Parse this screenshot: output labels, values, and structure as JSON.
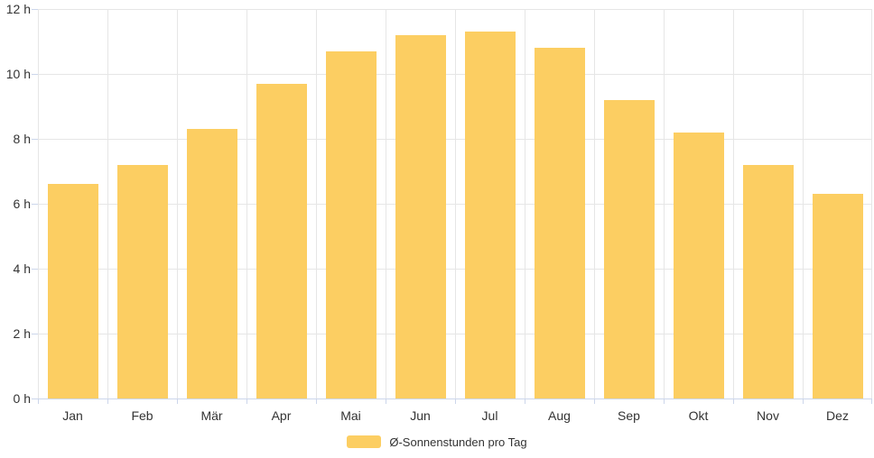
{
  "chart_data": {
    "type": "bar",
    "categories": [
      "Jan",
      "Feb",
      "Mär",
      "Apr",
      "Mai",
      "Jun",
      "Jul",
      "Aug",
      "Sep",
      "Okt",
      "Nov",
      "Dez"
    ],
    "values": [
      6.6,
      7.2,
      8.3,
      9.7,
      10.7,
      11.2,
      11.3,
      10.8,
      9.2,
      8.2,
      7.2,
      6.3
    ],
    "series_name": "Ø-Sonnenstunden pro Tag",
    "title": "",
    "xlabel": "",
    "ylabel": "",
    "ylim": [
      0,
      12
    ],
    "ytick_step": 2,
    "ytick_labels": [
      "0 h",
      "2 h",
      "4 h",
      "6 h",
      "8 h",
      "10 h",
      "12 h"
    ],
    "grid": true,
    "legend_position": "bottom-center"
  },
  "legend": {
    "label": "Ø-Sonnenstunden pro Tag"
  },
  "colors": {
    "bar": "#FCCE62",
    "grid": "#E6E6E6",
    "axis": "#CCD6EB",
    "text": "#333333",
    "background": "#FFFFFF"
  }
}
